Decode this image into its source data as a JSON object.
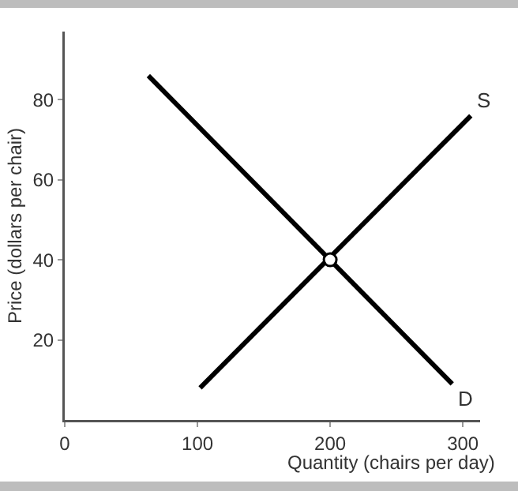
{
  "chart_data": {
    "type": "line",
    "xlabel": "Quantity (chairs per day)",
    "ylabel": "Price (dollars per chair)",
    "series": [
      {
        "name": "D",
        "color": "#000000",
        "x": [
          63,
          292
        ],
        "values": [
          86,
          9
        ]
      },
      {
        "name": "S",
        "color": "#000000",
        "x": [
          102,
          306
        ],
        "values": [
          8,
          76
        ]
      },
      {
        "type": "scatter",
        "color": "#000000",
        "x": [
          200
        ],
        "values": [
          40
        ],
        "marker": "circle"
      }
    ],
    "xlim": [
      0,
      313
    ],
    "ylim": [
      0,
      97
    ],
    "xticks": [
      0,
      100,
      200,
      300
    ],
    "yticks": [
      20,
      40,
      60,
      80
    ],
    "grid": false,
    "legend": false,
    "marker": "none",
    "line_style": "solid"
  }
}
